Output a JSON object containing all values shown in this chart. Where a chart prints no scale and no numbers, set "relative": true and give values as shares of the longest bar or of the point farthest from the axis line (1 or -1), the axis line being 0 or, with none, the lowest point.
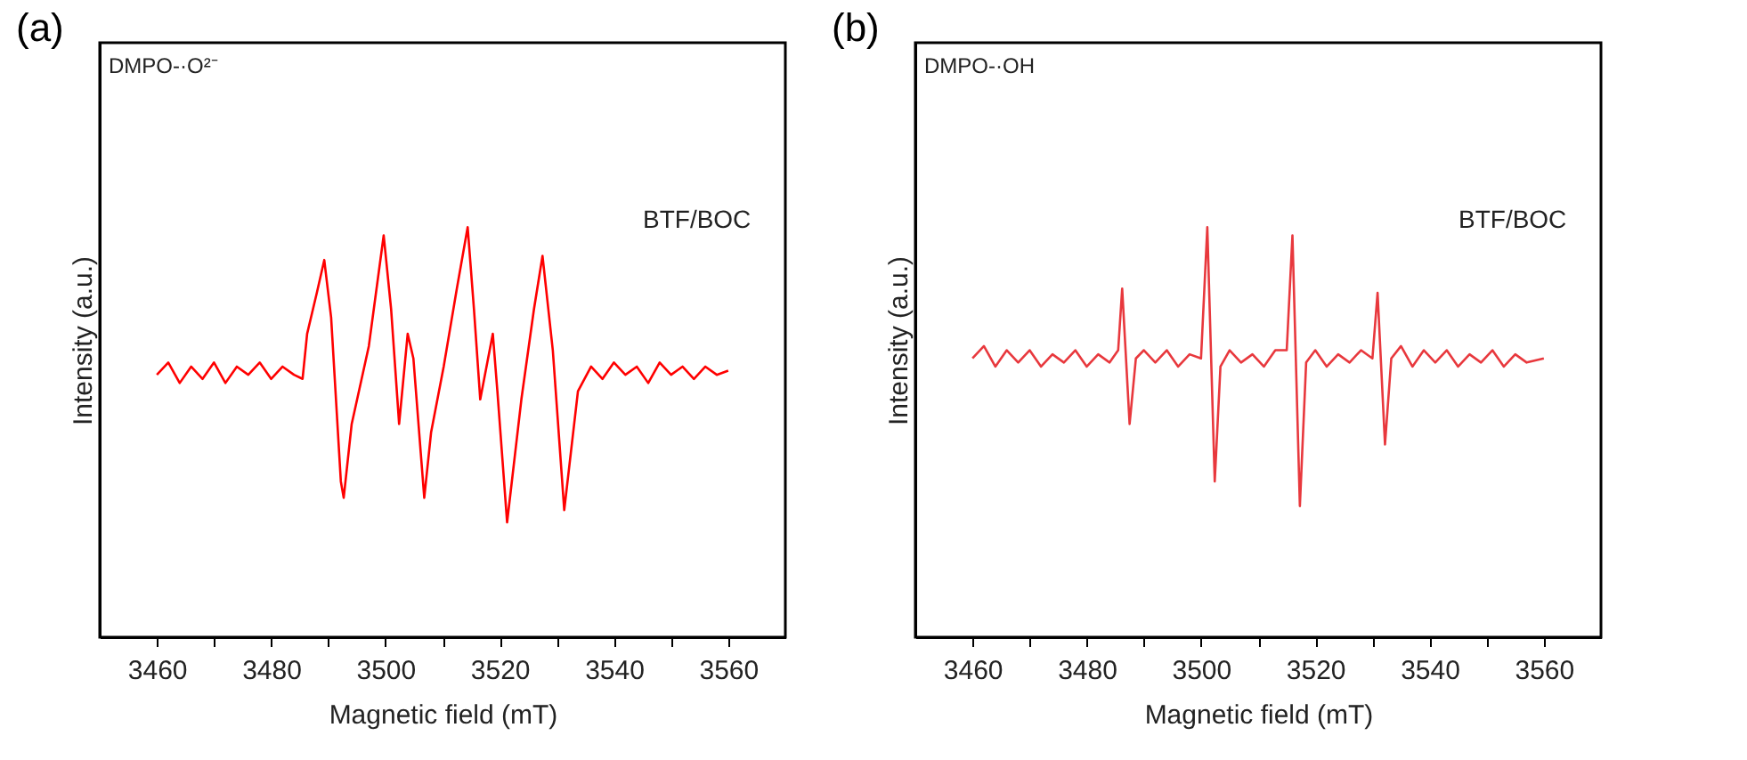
{
  "chart_data": [
    {
      "type": "line",
      "title": "(a)",
      "xlabel": "Magnetic field (mT)",
      "ylabel": "Intensity (a.u.)",
      "relative": true,
      "xlim": [
        3450,
        3570
      ],
      "xticks": [
        3460,
        {
          "value": 3470,
          "label": null
        },
        3480,
        {
          "value": 3490,
          "label": null
        },
        3500,
        {
          "value": 3510,
          "label": null
        },
        3520,
        {
          "value": 3530,
          "label": null
        },
        3540,
        {
          "value": 3550,
          "label": null
        },
        3560
      ],
      "annotations": [
        "DMPO-·O²⁻"
      ],
      "series": [
        {
          "name": "BTF/BOC",
          "color": "#ff0000",
          "x": [
            3460,
            3462,
            3464,
            3466,
            3468,
            3470,
            3472,
            3474,
            3476,
            3478,
            3480,
            3482,
            3484,
            3485.5,
            3486.3,
            3488,
            3489.3,
            3490.5,
            3492.2,
            3492.7,
            3494.1,
            3497.1,
            3499.7,
            3501,
            3502.4,
            3503.9,
            3504.9,
            3506.8,
            3508,
            3510.2,
            3512.5,
            3514.4,
            3515.5,
            3516.6,
            3518.8,
            3519.6,
            3521.3,
            3523.8,
            3526,
            3527.5,
            3529.3,
            3531.3,
            3533.7,
            3536,
            3538,
            3540,
            3542,
            3544,
            3546,
            3548,
            3550,
            3552,
            3554,
            3556,
            3558,
            3560
          ],
          "values": [
            0.64,
            0.67,
            0.62,
            0.66,
            0.63,
            0.67,
            0.62,
            0.66,
            0.64,
            0.67,
            0.63,
            0.66,
            0.64,
            0.63,
            0.74,
            0.84,
            0.92,
            0.78,
            0.38,
            0.34,
            0.52,
            0.71,
            0.98,
            0.8,
            0.52,
            0.74,
            0.68,
            0.34,
            0.5,
            0.66,
            0.85,
            1.0,
            0.8,
            0.58,
            0.74,
            0.6,
            0.28,
            0.58,
            0.8,
            0.93,
            0.7,
            0.31,
            0.6,
            0.66,
            0.63,
            0.67,
            0.64,
            0.66,
            0.62,
            0.67,
            0.64,
            0.66,
            0.63,
            0.66,
            0.64,
            0.65
          ]
        }
      ]
    },
    {
      "type": "line",
      "title": "(b)",
      "xlabel": "Magnetic field (mT)",
      "ylabel": "Intensity (a.u.)",
      "relative": true,
      "xlim": [
        3450,
        3570
      ],
      "xticks": [
        3460,
        {
          "value": 3470,
          "label": null
        },
        3480,
        {
          "value": 3490,
          "label": null
        },
        3500,
        {
          "value": 3510,
          "label": null
        },
        3520,
        {
          "value": 3530,
          "label": null
        },
        3540,
        {
          "value": 3550,
          "label": null
        },
        3560
      ],
      "annotations": [
        "DMPO-·OH"
      ],
      "series": [
        {
          "name": "BTF/BOC",
          "color": "#e8383d",
          "x": [
            3460,
            3462,
            3464,
            3466,
            3468,
            3470,
            3472,
            3474,
            3476,
            3478,
            3480,
            3482,
            3484,
            3485.5,
            3486.2,
            3487.5,
            3488.6,
            3490,
            3492,
            3494,
            3496,
            3498,
            3500,
            3501.1,
            3502.4,
            3503.4,
            3505,
            3507,
            3509,
            3511,
            3513,
            3515,
            3516,
            3517.3,
            3518.4,
            3520,
            3522,
            3524,
            3526,
            3528,
            3530,
            3530.9,
            3532.2,
            3533.3,
            3535,
            3537,
            3539,
            3541,
            3543,
            3545,
            3547,
            3549,
            3551,
            3553,
            3555,
            3557,
            3560
          ],
          "values": [
            0.68,
            0.71,
            0.66,
            0.7,
            0.67,
            0.7,
            0.66,
            0.69,
            0.67,
            0.7,
            0.66,
            0.69,
            0.67,
            0.7,
            0.85,
            0.52,
            0.68,
            0.7,
            0.67,
            0.7,
            0.66,
            0.69,
            0.68,
            1.0,
            0.38,
            0.66,
            0.7,
            0.67,
            0.69,
            0.66,
            0.7,
            0.7,
            0.98,
            0.32,
            0.67,
            0.7,
            0.66,
            0.69,
            0.67,
            0.7,
            0.68,
            0.84,
            0.47,
            0.68,
            0.71,
            0.66,
            0.7,
            0.67,
            0.7,
            0.66,
            0.69,
            0.67,
            0.7,
            0.66,
            0.69,
            0.67,
            0.68
          ]
        }
      ]
    }
  ]
}
